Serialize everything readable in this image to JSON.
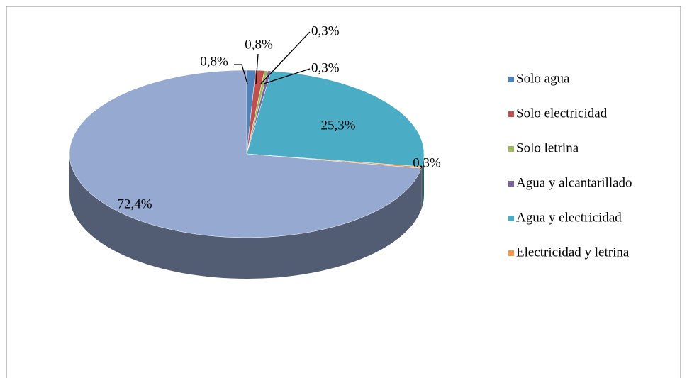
{
  "chart_data": {
    "type": "pie",
    "categories": [
      "Solo agua",
      "Solo electricidad",
      "Solo letrina",
      "Agua y alcantarillado",
      "Agua y electricidad",
      "Electricidad y letrina",
      null
    ],
    "values": [
      0.8,
      0.8,
      0.3,
      0.3,
      25.3,
      0.3,
      72.4
    ],
    "value_labels": [
      "0,8%",
      "0,8%",
      "0,3%",
      "0,3%",
      "25,3%",
      "0,3%",
      "72,4%"
    ],
    "colors": [
      "#4f81bd",
      "#c0504d",
      "#9bbb59",
      "#8064a2",
      "#4bacc6",
      "#f79646",
      "#95a9d1"
    ],
    "legend": "right"
  }
}
